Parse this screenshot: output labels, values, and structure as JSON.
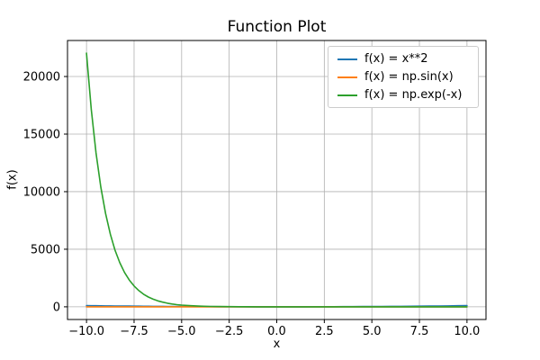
{
  "figure": {
    "title": "Function Plot",
    "xlabel": "x",
    "ylabel": "f(x)"
  },
  "chart_data": {
    "type": "line",
    "title": "Function Plot",
    "xlabel": "x",
    "ylabel": "f(x)",
    "grid": true,
    "legend_position": "upper right",
    "xlim": [
      -11,
      11
    ],
    "ylim": [
      -1102,
      23128
    ],
    "xticks": {
      "values": [
        -10,
        -7.5,
        -5,
        -2.5,
        0,
        2.5,
        5,
        7.5,
        10
      ],
      "labels": [
        "−10.0",
        "−7.5",
        "−5.0",
        "−2.5",
        "0.0",
        "2.5",
        "5.0",
        "7.5",
        "10.0"
      ]
    },
    "yticks": {
      "values": [
        0,
        5000,
        10000,
        15000,
        20000
      ],
      "labels": [
        "0",
        "5000",
        "10000",
        "15000",
        "20000"
      ]
    },
    "x": [
      -10,
      -9.75,
      -9.5,
      -9.25,
      -9,
      -8.75,
      -8.5,
      -8.25,
      -8,
      -7.75,
      -7.5,
      -7.25,
      -7,
      -6.75,
      -6.5,
      -6.25,
      -6,
      -5.75,
      -5.5,
      -5.25,
      -5,
      -4.5,
      -4,
      -3.5,
      -3,
      -2.5,
      -2,
      -1.5,
      -1,
      -0.5,
      0,
      0.5,
      1,
      1.5,
      2,
      2.5,
      3,
      3.5,
      4,
      4.5,
      5,
      5.5,
      6,
      6.5,
      7,
      7.5,
      8,
      8.5,
      9,
      9.5,
      10
    ],
    "series": [
      {
        "name": "f(x) = x**2",
        "color": "#1f77b4",
        "values": [
          100,
          95.06,
          90.25,
          85.56,
          81,
          76.56,
          72.25,
          68.06,
          64,
          60.06,
          56.25,
          52.56,
          49,
          45.56,
          42.25,
          39.06,
          36,
          33.06,
          30.25,
          27.56,
          25,
          20.25,
          16,
          12.25,
          9,
          6.25,
          4,
          2.25,
          1,
          0.25,
          0,
          0.25,
          1,
          2.25,
          4,
          6.25,
          9,
          12.25,
          16,
          20.25,
          25,
          30.25,
          36,
          42.25,
          49,
          56.25,
          64,
          72.25,
          81,
          90.25,
          100
        ]
      },
      {
        "name": "f(x) = np.sin(x)",
        "color": "#ff7f0e",
        "values": [
          0.544,
          0.3195,
          0.0752,
          -0.1739,
          -0.4121,
          -0.6247,
          -0.7985,
          -0.9224,
          -0.9894,
          -0.9946,
          -0.938,
          -0.8228,
          -0.657,
          -0.4501,
          -0.2151,
          0.0332,
          0.2794,
          0.5082,
          0.7055,
          0.8589,
          0.9589,
          0.9775,
          0.7568,
          0.3508,
          -0.1411,
          -0.5985,
          -0.9093,
          -0.9975,
          -0.8415,
          -0.4794,
          0,
          0.4794,
          0.8415,
          0.9975,
          0.9093,
          0.5985,
          0.1411,
          -0.3508,
          -0.7568,
          -0.9775,
          -0.9589,
          -0.7055,
          -0.2794,
          0.2151,
          0.657,
          0.938,
          0.9894,
          0.7985,
          0.4121,
          -0.0752,
          -0.544
        ]
      },
      {
        "name": "f(x) = np.exp(-x)",
        "color": "#2ca02c",
        "values": [
          22026.47,
          17154.23,
          13359.73,
          10404.57,
          8103.08,
          6310.69,
          4914.77,
          3827.63,
          2980.96,
          2321.57,
          1808.04,
          1408.1,
          1096.63,
          854.06,
          665.14,
          518.01,
          403.43,
          314.19,
          244.69,
          190.57,
          148.41,
          90.02,
          54.6,
          33.12,
          20.09,
          12.18,
          7.39,
          4.48,
          2.72,
          1.65,
          1,
          0.607,
          0.368,
          0.223,
          0.135,
          0.082,
          0.0498,
          0.0302,
          0.0183,
          0.0111,
          0.0067,
          0.0041,
          0.0025,
          0.0015,
          0.0009,
          0.00055,
          0.00034,
          0.0002,
          0.00012,
          7e-05,
          5e-05
        ]
      }
    ]
  }
}
